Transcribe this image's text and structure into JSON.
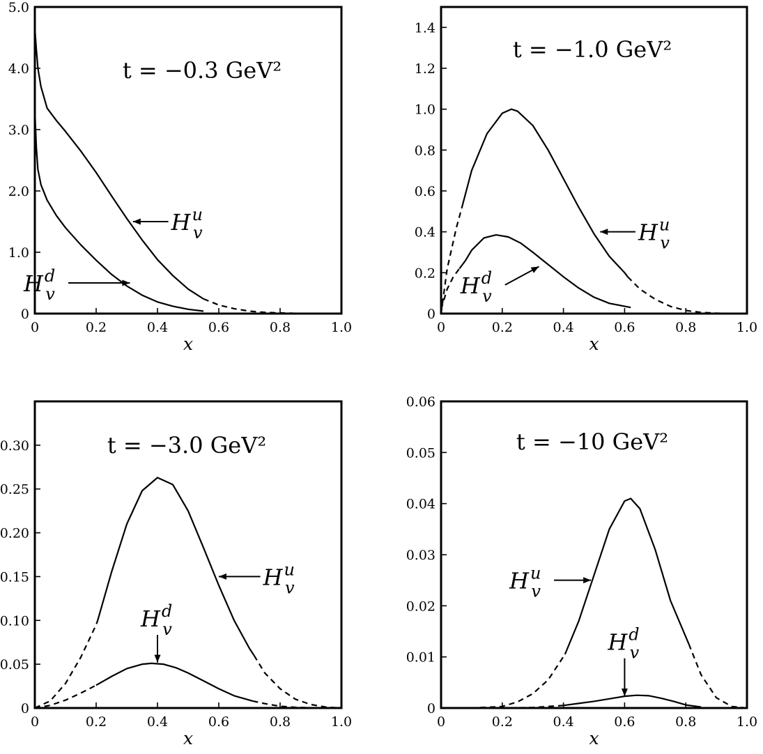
{
  "chart_data": [
    {
      "type": "line",
      "title": "t = −0.3 GeV²",
      "xlabel": "x",
      "ylabel": "",
      "xlim": [
        0,
        1.0
      ],
      "ylim": [
        0,
        5.0
      ],
      "x_ticks": [
        0,
        0.2,
        0.4,
        0.6,
        0.8,
        1.0
      ],
      "x_tick_labels": [
        "0",
        "0.2",
        "0.4",
        "0.6",
        "0.8",
        "1.0"
      ],
      "y_ticks": [
        0,
        1.0,
        2.0,
        3.0,
        4.0,
        5.0
      ],
      "y_tick_labels": [
        "0",
        "1.0",
        "2.0",
        "3.0",
        "4.0",
        "5.0"
      ],
      "series": [
        {
          "name": "H_v^u",
          "dash_from_x": 0.55,
          "x": [
            0.0,
            0.005,
            0.01,
            0.02,
            0.04,
            0.07,
            0.1,
            0.15,
            0.2,
            0.25,
            0.3,
            0.35,
            0.4,
            0.45,
            0.5,
            0.55,
            0.6,
            0.65,
            0.7,
            0.75,
            0.8,
            0.85,
            0.9,
            1.0
          ],
          "y": [
            4.65,
            4.3,
            4.0,
            3.7,
            3.35,
            3.15,
            2.97,
            2.65,
            2.3,
            1.92,
            1.55,
            1.2,
            0.88,
            0.62,
            0.4,
            0.24,
            0.14,
            0.08,
            0.04,
            0.02,
            0.01,
            0.005,
            0.002,
            0.0
          ]
        },
        {
          "name": "H_v^d",
          "dash_from_x": null,
          "x": [
            0.0,
            0.005,
            0.01,
            0.02,
            0.04,
            0.07,
            0.1,
            0.15,
            0.2,
            0.25,
            0.3,
            0.35,
            0.4,
            0.45,
            0.5,
            0.55
          ],
          "y": [
            3.3,
            2.7,
            2.35,
            2.1,
            1.85,
            1.6,
            1.4,
            1.12,
            0.87,
            0.64,
            0.45,
            0.3,
            0.19,
            0.12,
            0.07,
            0.04
          ]
        }
      ],
      "annotations": [
        {
          "main": "H",
          "sub": "v",
          "sup": "u",
          "target": [
            0.32,
            1.5
          ],
          "label_at": [
            0.44,
            1.5
          ]
        },
        {
          "main": "H",
          "sub": "v",
          "sup": "d",
          "target": [
            0.31,
            0.5
          ],
          "label_at": [
            0.1,
            0.5
          ]
        }
      ]
    },
    {
      "type": "line",
      "title": "t = −1.0 GeV²",
      "xlabel": "x",
      "ylabel": "",
      "xlim": [
        0,
        1.0
      ],
      "ylim": [
        0,
        1.5
      ],
      "x_ticks": [
        0,
        0.2,
        0.4,
        0.6,
        0.8,
        1.0
      ],
      "x_tick_labels": [
        "0",
        "0.2",
        "0.4",
        "0.6",
        "0.8",
        "1.0"
      ],
      "y_ticks": [
        0,
        0.2,
        0.4,
        0.6,
        0.8,
        1.0,
        1.2,
        1.4
      ],
      "y_tick_labels": [
        "0",
        "0.2",
        "0.4",
        "0.6",
        "0.8",
        "1.0",
        "1.2",
        "1.4"
      ],
      "series": [
        {
          "name": "H_v^u",
          "dash_before_x": 0.07,
          "dash_from_x": 0.61,
          "x": [
            0.0,
            0.02,
            0.05,
            0.07,
            0.1,
            0.15,
            0.2,
            0.23,
            0.25,
            0.3,
            0.35,
            0.4,
            0.45,
            0.5,
            0.55,
            0.6,
            0.61,
            0.65,
            0.7,
            0.75,
            0.8,
            0.85,
            0.9,
            1.0
          ],
          "y": [
            0.0,
            0.22,
            0.42,
            0.53,
            0.7,
            0.88,
            0.98,
            1.0,
            0.99,
            0.92,
            0.8,
            0.66,
            0.52,
            0.39,
            0.28,
            0.2,
            0.18,
            0.12,
            0.07,
            0.035,
            0.015,
            0.006,
            0.002,
            0.0
          ]
        },
        {
          "name": "H_v^d",
          "dash_before_x": 0.06,
          "dash_from_x": 0.62,
          "x": [
            0.0,
            0.02,
            0.04,
            0.06,
            0.08,
            0.1,
            0.14,
            0.18,
            0.22,
            0.26,
            0.3,
            0.35,
            0.4,
            0.45,
            0.5,
            0.55,
            0.62
          ],
          "y": [
            0.02,
            0.12,
            0.18,
            0.22,
            0.26,
            0.31,
            0.37,
            0.385,
            0.375,
            0.345,
            0.3,
            0.24,
            0.18,
            0.125,
            0.08,
            0.05,
            0.03
          ]
        }
      ],
      "annotations": [
        {
          "main": "H",
          "sub": "v",
          "sup": "u",
          "target": [
            0.52,
            0.4
          ],
          "label_at": [
            0.64,
            0.4
          ]
        },
        {
          "main": "H",
          "sub": "v",
          "sup": "d",
          "target": [
            0.32,
            0.23
          ],
          "label_at": [
            0.2,
            0.14
          ]
        }
      ]
    },
    {
      "type": "line",
      "title": "t = −3.0 GeV²",
      "xlabel": "x",
      "ylabel": "",
      "xlim": [
        0,
        1.0
      ],
      "ylim": [
        0,
        0.35
      ],
      "x_ticks": [
        0,
        0.2,
        0.4,
        0.6,
        0.8,
        1.0
      ],
      "x_tick_labels": [
        "0",
        "0.2",
        "0.4",
        "0.6",
        "0.8",
        "1.0"
      ],
      "y_ticks": [
        0,
        0.05,
        0.1,
        0.15,
        0.2,
        0.25,
        0.3
      ],
      "y_tick_labels": [
        "0",
        "0.05",
        "0.10",
        "0.15",
        "0.20",
        "0.25",
        "0.30"
      ],
      "series": [
        {
          "name": "H_v^u",
          "dash_before_x": 0.205,
          "dash_from_x": 0.715,
          "x": [
            0.0,
            0.05,
            0.1,
            0.15,
            0.2,
            0.205,
            0.25,
            0.3,
            0.35,
            0.4,
            0.45,
            0.5,
            0.55,
            0.6,
            0.65,
            0.7,
            0.715,
            0.75,
            0.8,
            0.85,
            0.9,
            0.95,
            1.0
          ],
          "y": [
            0.0,
            0.008,
            0.028,
            0.058,
            0.095,
            0.1,
            0.155,
            0.21,
            0.248,
            0.263,
            0.255,
            0.225,
            0.183,
            0.14,
            0.1,
            0.068,
            0.06,
            0.04,
            0.022,
            0.01,
            0.004,
            0.001,
            0.0
          ]
        },
        {
          "name": "H_v^d",
          "dash_before_x": 0.2,
          "dash_from_x": 0.71,
          "x": [
            0.0,
            0.05,
            0.1,
            0.15,
            0.2,
            0.25,
            0.3,
            0.35,
            0.38,
            0.42,
            0.46,
            0.5,
            0.55,
            0.6,
            0.65,
            0.71,
            0.75,
            0.8,
            0.85,
            0.9,
            1.0
          ],
          "y": [
            0.0,
            0.003,
            0.009,
            0.017,
            0.026,
            0.036,
            0.045,
            0.05,
            0.051,
            0.05,
            0.046,
            0.04,
            0.031,
            0.022,
            0.014,
            0.008,
            0.005,
            0.002,
            0.0008,
            0.0002,
            0.0
          ]
        }
      ],
      "annotations": [
        {
          "main": "H",
          "sub": "v",
          "sup": "u",
          "target": [
            0.6,
            0.15
          ],
          "label_at": [
            0.74,
            0.15
          ]
        },
        {
          "main": "H",
          "sub": "v",
          "sup": "d",
          "target": [
            0.4,
            0.052
          ],
          "label_at": [
            0.4,
            0.085
          ]
        }
      ]
    },
    {
      "type": "line",
      "title": "t = −10 GeV²",
      "xlabel": "x",
      "ylabel": "",
      "xlim": [
        0,
        1.0
      ],
      "ylim": [
        0,
        0.06
      ],
      "x_ticks": [
        0,
        0.2,
        0.4,
        0.6,
        0.8,
        1.0
      ],
      "x_tick_labels": [
        "0",
        "0.2",
        "0.4",
        "0.6",
        "0.8",
        "1.0"
      ],
      "y_ticks": [
        0,
        0.01,
        0.02,
        0.03,
        0.04,
        0.05,
        0.06
      ],
      "y_tick_labels": [
        "0",
        "0.01",
        "0.02",
        "0.03",
        "0.04",
        "0.05",
        "0.06"
      ],
      "series": [
        {
          "name": "H_v^u",
          "dash_before_x": 0.405,
          "dash_from_x": 0.81,
          "x": [
            0.0,
            0.1,
            0.2,
            0.25,
            0.3,
            0.35,
            0.405,
            0.45,
            0.5,
            0.55,
            0.6,
            0.62,
            0.65,
            0.7,
            0.75,
            0.81,
            0.85,
            0.9,
            0.95,
            1.0
          ],
          "y": [
            0.0,
            0.0,
            0.0003,
            0.0012,
            0.0028,
            0.0055,
            0.0105,
            0.017,
            0.026,
            0.035,
            0.0405,
            0.041,
            0.039,
            0.031,
            0.021,
            0.0125,
            0.0065,
            0.002,
            0.0003,
            0.0
          ]
        },
        {
          "name": "H_v^d",
          "dash_before_x": 0.4,
          "dash_from_x": null,
          "x": [
            0.0,
            0.2,
            0.3,
            0.4,
            0.45,
            0.5,
            0.55,
            0.6,
            0.64,
            0.68,
            0.72,
            0.76,
            0.8,
            0.85
          ],
          "y": [
            0.0,
            0.0,
            0.0001,
            0.0005,
            0.0009,
            0.0013,
            0.0018,
            0.0023,
            0.0025,
            0.0024,
            0.0019,
            0.0013,
            0.0006,
            0.0002
          ]
        }
      ],
      "annotations": [
        {
          "main": "H",
          "sub": "v",
          "sup": "u",
          "target": [
            0.49,
            0.025
          ],
          "label_at": [
            0.36,
            0.025
          ]
        },
        {
          "main": "H",
          "sub": "v",
          "sup": "d",
          "target": [
            0.6,
            0.0023
          ],
          "label_at": [
            0.6,
            0.01
          ]
        }
      ]
    }
  ]
}
